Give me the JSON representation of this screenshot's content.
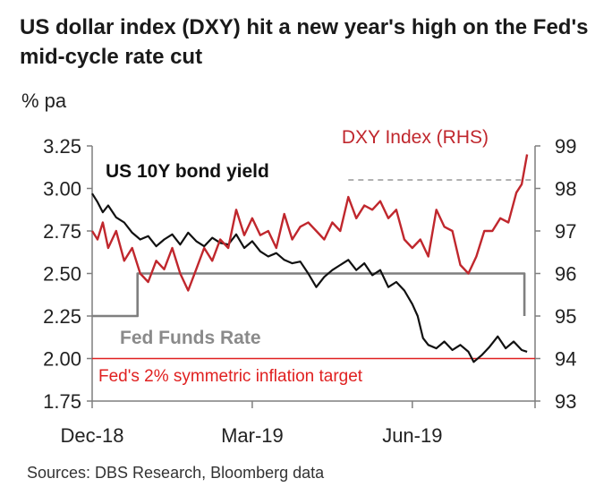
{
  "title": "US dollar index (DXY) hit a new year's high on the Fed's mid-cycle rate cut",
  "unit_label": "% pa",
  "source": "Sources: DBS Research, Bloomberg data",
  "colors": {
    "dxy": "#c0272d",
    "bond": "#111111",
    "fedfunds": "#7f7f7f",
    "target": "#e02020",
    "dashed": "#a6a6a6"
  },
  "chart_data": {
    "type": "line",
    "title": "US dollar index (DXY) hit a new year's high on the Fed's mid-cycle rate cut",
    "ylabel": "% pa",
    "y2label": "DXY Index (RHS)",
    "ylim": [
      1.75,
      3.25
    ],
    "y2lim": [
      93,
      99
    ],
    "yticks": [
      "3.25",
      "3.00",
      "2.75",
      "2.50",
      "2.25",
      "2.00",
      "1.75"
    ],
    "y2ticks": [
      "99",
      "98",
      "97",
      "96",
      "95",
      "94",
      "93"
    ],
    "xticks": [
      "Dec-18",
      "Mar-19",
      "Jun-19"
    ],
    "xtick_positions": [
      0,
      3,
      6
    ],
    "x_range": [
      0,
      8.3
    ],
    "annotations": {
      "bond": "US 10Y bond yield",
      "fedfunds": "Fed Funds Rate",
      "target": "Fed's 2% symmetric inflation target",
      "dxy": "DXY Index (RHS)"
    },
    "series": [
      {
        "name": "US 10Y bond yield",
        "axis": "left",
        "x": [
          0,
          0.1,
          0.2,
          0.3,
          0.45,
          0.6,
          0.75,
          0.9,
          1.05,
          1.2,
          1.35,
          1.5,
          1.65,
          1.8,
          1.95,
          2.1,
          2.25,
          2.4,
          2.55,
          2.7,
          2.85,
          3.0,
          3.15,
          3.3,
          3.45,
          3.6,
          3.75,
          3.9,
          4.05,
          4.2,
          4.35,
          4.5,
          4.65,
          4.8,
          4.95,
          5.1,
          5.25,
          5.4,
          5.55,
          5.7,
          5.85,
          6.0,
          6.1,
          6.2,
          6.3,
          6.45,
          6.6,
          6.75,
          6.9,
          7.05,
          7.15,
          7.3,
          7.45,
          7.6,
          7.75,
          7.9,
          8.05,
          8.15
        ],
        "values": [
          2.97,
          2.92,
          2.86,
          2.9,
          2.83,
          2.8,
          2.74,
          2.7,
          2.72,
          2.66,
          2.7,
          2.73,
          2.67,
          2.74,
          2.69,
          2.66,
          2.71,
          2.68,
          2.67,
          2.73,
          2.65,
          2.69,
          2.63,
          2.6,
          2.62,
          2.58,
          2.56,
          2.57,
          2.5,
          2.42,
          2.48,
          2.52,
          2.55,
          2.58,
          2.52,
          2.56,
          2.49,
          2.52,
          2.42,
          2.45,
          2.4,
          2.32,
          2.25,
          2.12,
          2.08,
          2.06,
          2.1,
          2.05,
          2.08,
          2.04,
          1.98,
          2.02,
          2.07,
          2.13,
          2.06,
          2.1,
          2.05,
          2.04
        ]
      },
      {
        "name": "DXY Index (RHS)",
        "axis": "right",
        "x": [
          0,
          0.1,
          0.2,
          0.3,
          0.45,
          0.6,
          0.75,
          0.9,
          1.05,
          1.2,
          1.35,
          1.5,
          1.65,
          1.8,
          1.95,
          2.1,
          2.25,
          2.4,
          2.55,
          2.7,
          2.85,
          3.0,
          3.15,
          3.3,
          3.45,
          3.6,
          3.75,
          3.9,
          4.05,
          4.2,
          4.35,
          4.5,
          4.65,
          4.8,
          4.95,
          5.1,
          5.25,
          5.4,
          5.55,
          5.7,
          5.85,
          6.0,
          6.15,
          6.3,
          6.45,
          6.6,
          6.75,
          6.9,
          7.05,
          7.2,
          7.35,
          7.5,
          7.65,
          7.8,
          7.95,
          8.05,
          8.15
        ],
        "values": [
          97.0,
          96.8,
          97.2,
          96.6,
          97.0,
          96.3,
          96.6,
          96.0,
          95.8,
          96.3,
          96.1,
          96.6,
          96.0,
          95.6,
          96.1,
          96.6,
          96.3,
          96.8,
          96.6,
          97.5,
          96.9,
          97.3,
          96.9,
          97.0,
          96.6,
          97.4,
          96.8,
          97.1,
          97.2,
          97.0,
          96.8,
          97.2,
          97.0,
          97.8,
          97.3,
          97.6,
          97.5,
          97.7,
          97.3,
          97.5,
          96.8,
          96.6,
          96.8,
          96.4,
          97.5,
          97.1,
          97.0,
          96.2,
          96.0,
          96.4,
          97.0,
          97.0,
          97.3,
          97.2,
          97.9,
          98.1,
          98.8
        ]
      },
      {
        "name": "Fed Funds Rate",
        "axis": "left",
        "x": [
          0,
          0.85,
          0.85,
          8.1,
          8.1
        ],
        "values": [
          2.25,
          2.25,
          2.5,
          2.5,
          2.25
        ]
      },
      {
        "name": "Fed's 2% symmetric inflation target",
        "axis": "left",
        "x": [
          0,
          8.3
        ],
        "values": [
          2.0,
          2.0
        ]
      },
      {
        "name": "DXY level (dashed reference)",
        "axis": "right",
        "x": [
          4.8,
          8.3
        ],
        "values": [
          98.2,
          98.2
        ]
      }
    ]
  }
}
